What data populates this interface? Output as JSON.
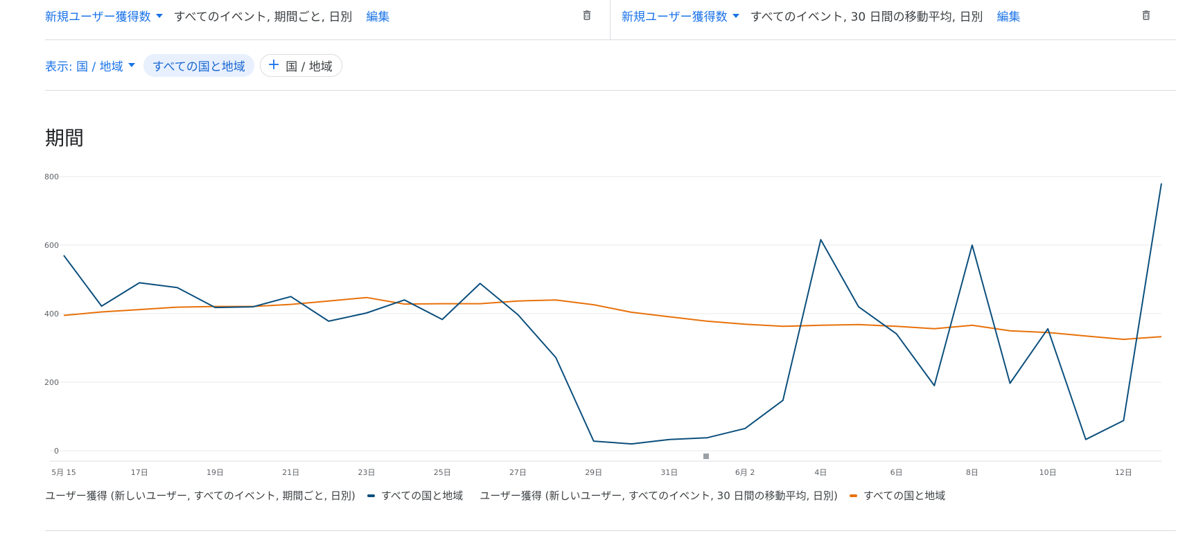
{
  "metrics": [
    {
      "name": "新規ユーザー獲得数",
      "description": "すべてのイベント, 期間ごと, 日別",
      "edit_label": "編集"
    },
    {
      "name": "新規ユーザー獲得数",
      "description": "すべてのイベント, 30 日間の移動平均, 日別",
      "edit_label": "編集"
    }
  ],
  "filter": {
    "display_label": "表示: 国 / 地域",
    "active_chip": "すべての国と地域",
    "add_chip": "国 / 地域"
  },
  "section_title": "期間",
  "colors": {
    "series_daily": "#0b4f7d",
    "series_moving_avg": "#e8710a",
    "accent": "#1a73e8"
  },
  "legend": [
    {
      "group_label": "ユーザー獲得 (新しいユーザー, すべてのイベント, 期間ごと, 日別)",
      "series_label": "すべての国と地域"
    },
    {
      "group_label": "ユーザー獲得 (新しいユーザー, すべてのイベント, 30 日間の移動平均, 日別)",
      "series_label": "すべての国と地域"
    }
  ],
  "chart_data": {
    "type": "line",
    "title": "期間",
    "x": [
      "5月 15",
      "16日",
      "17日",
      "18日",
      "19日",
      "20日",
      "21日",
      "22日",
      "23日",
      "24日",
      "25日",
      "26日",
      "27日",
      "28日",
      "29日",
      "30日",
      "31日",
      "6月 1",
      "6月 2",
      "3日",
      "4日",
      "5日",
      "6日",
      "7日",
      "8日",
      "9日",
      "10日",
      "11日",
      "12日",
      "13日"
    ],
    "x_tick_labels": [
      "5月 15",
      "17日",
      "19日",
      "21日",
      "23日",
      "25日",
      "27日",
      "29日",
      "31日",
      "6月 2",
      "4日",
      "6日",
      "8日",
      "10日",
      "12日"
    ],
    "y_ticks": [
      0,
      200,
      400,
      600,
      800
    ],
    "ylim": [
      0,
      800
    ],
    "grid": true,
    "legend_position": "bottom",
    "series": [
      {
        "name": "すべての国と地域",
        "values": [
          570,
          422,
          490,
          476,
          418,
          420,
          450,
          378,
          402,
          440,
          383,
          488,
          397,
          272,
          28,
          20,
          33,
          38,
          65,
          147,
          616,
          420,
          341,
          190,
          600,
          197,
          356,
          33,
          88,
          780
        ]
      },
      {
        "name": "すべての国と地域",
        "values": [
          395,
          405,
          412,
          419,
          421,
          421,
          427,
          437,
          447,
          428,
          429,
          429,
          437,
          440,
          426,
          404,
          391,
          378,
          369,
          363,
          366,
          368,
          363,
          356,
          366,
          350,
          345,
          335,
          325,
          333
        ]
      }
    ]
  }
}
